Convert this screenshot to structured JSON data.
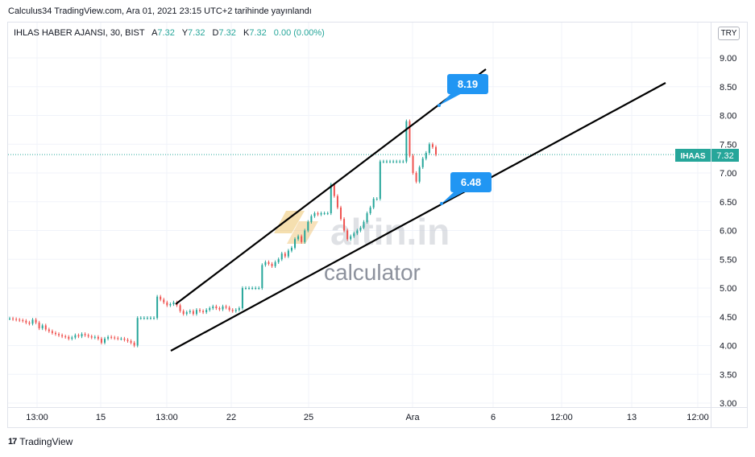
{
  "header": {
    "published_line": "Calculus34 TradingView.com, Ara 01, 2021 23:15 UTC+2 tarihinde yayınlandı"
  },
  "legend": {
    "symbol_line": "IHLAS HABER AJANSI, 30, BIST",
    "a_label": "A",
    "a_value": "7.32",
    "y_label": "Y",
    "y_value": "7.32",
    "d_label": "D",
    "d_value": "7.32",
    "k_label": "K",
    "k_value": "7.32",
    "change": "0.00 (0.00%)"
  },
  "currency_button": "TRY",
  "price_tag": {
    "ticker": "IHAAS",
    "price": "7.32"
  },
  "watermark": {
    "brand": "altin.in",
    "sub": "calculator"
  },
  "footer": {
    "logo": "17",
    "brand": "TradingView"
  },
  "colors": {
    "up": "#26a69a",
    "down": "#ef5350",
    "label_blue": "#2196f3",
    "trendline": "#000000",
    "grid": "#f0f3fa",
    "tag_bg": "#26a69a"
  },
  "chart_data": {
    "type": "candlestick",
    "ylim": [
      2.85,
      9.35
    ],
    "y_ticks": [
      "9.00",
      "8.50",
      "8.00",
      "7.50",
      "7.00",
      "6.50",
      "6.00",
      "5.50",
      "5.00",
      "4.50",
      "4.00",
      "3.50",
      "3.00"
    ],
    "x_ticks": [
      "13:00",
      "15",
      "13:00",
      "22",
      "25",
      "Ara",
      "6",
      "12:00",
      "13",
      "12:00"
    ],
    "last_price": 7.32,
    "series_close": [
      4.47,
      4.46,
      4.45,
      4.44,
      4.43,
      4.4,
      4.38,
      4.45,
      4.4,
      4.3,
      4.35,
      4.28,
      4.25,
      4.22,
      4.2,
      4.18,
      4.16,
      4.15,
      4.12,
      4.14,
      4.18,
      4.16,
      4.2,
      4.18,
      4.16,
      4.14,
      4.15,
      4.12,
      4.05,
      4.12,
      4.15,
      4.14,
      4.13,
      4.12,
      4.12,
      4.1,
      4.08,
      4.05,
      4.0,
      4.48,
      4.48,
      4.48,
      4.48,
      4.48,
      4.48,
      4.85,
      4.8,
      4.75,
      4.7,
      4.72,
      4.75,
      4.7,
      4.6,
      4.55,
      4.58,
      4.6,
      4.55,
      4.62,
      4.6,
      4.58,
      4.62,
      4.65,
      4.68,
      4.65,
      4.63,
      4.68,
      4.66,
      4.62,
      4.6,
      4.62,
      4.65,
      5.0,
      5.0,
      5.0,
      5.0,
      5.0,
      5.0,
      5.4,
      5.45,
      5.42,
      5.38,
      5.45,
      5.5,
      5.6,
      5.55,
      5.65,
      5.7,
      5.85,
      5.9,
      5.8,
      6.0,
      6.15,
      6.25,
      6.3,
      6.28,
      6.3,
      6.3,
      6.3,
      6.8,
      6.6,
      6.4,
      6.2,
      6.0,
      5.85,
      5.9,
      5.95,
      6.0,
      6.05,
      6.15,
      6.3,
      6.4,
      6.55,
      6.55,
      7.2,
      7.2,
      7.2,
      7.2,
      7.2,
      7.2,
      7.2,
      7.2,
      7.9,
      7.3,
      7.0,
      6.85,
      7.1,
      7.25,
      7.35,
      7.5,
      7.45,
      7.32
    ],
    "trendlines": [
      {
        "label": "upper",
        "from": {
          "x": "21 13:00",
          "y": 4.72
        },
        "to": {
          "x": "Ara 6",
          "y": 8.82
        }
      },
      {
        "label": "lower",
        "from": {
          "x": "21 13:00",
          "y": 3.93
        },
        "to": {
          "x": "13 12:00",
          "y": 8.58
        }
      }
    ],
    "callouts": [
      {
        "value": "8.19"
      },
      {
        "value": "6.48"
      }
    ]
  }
}
